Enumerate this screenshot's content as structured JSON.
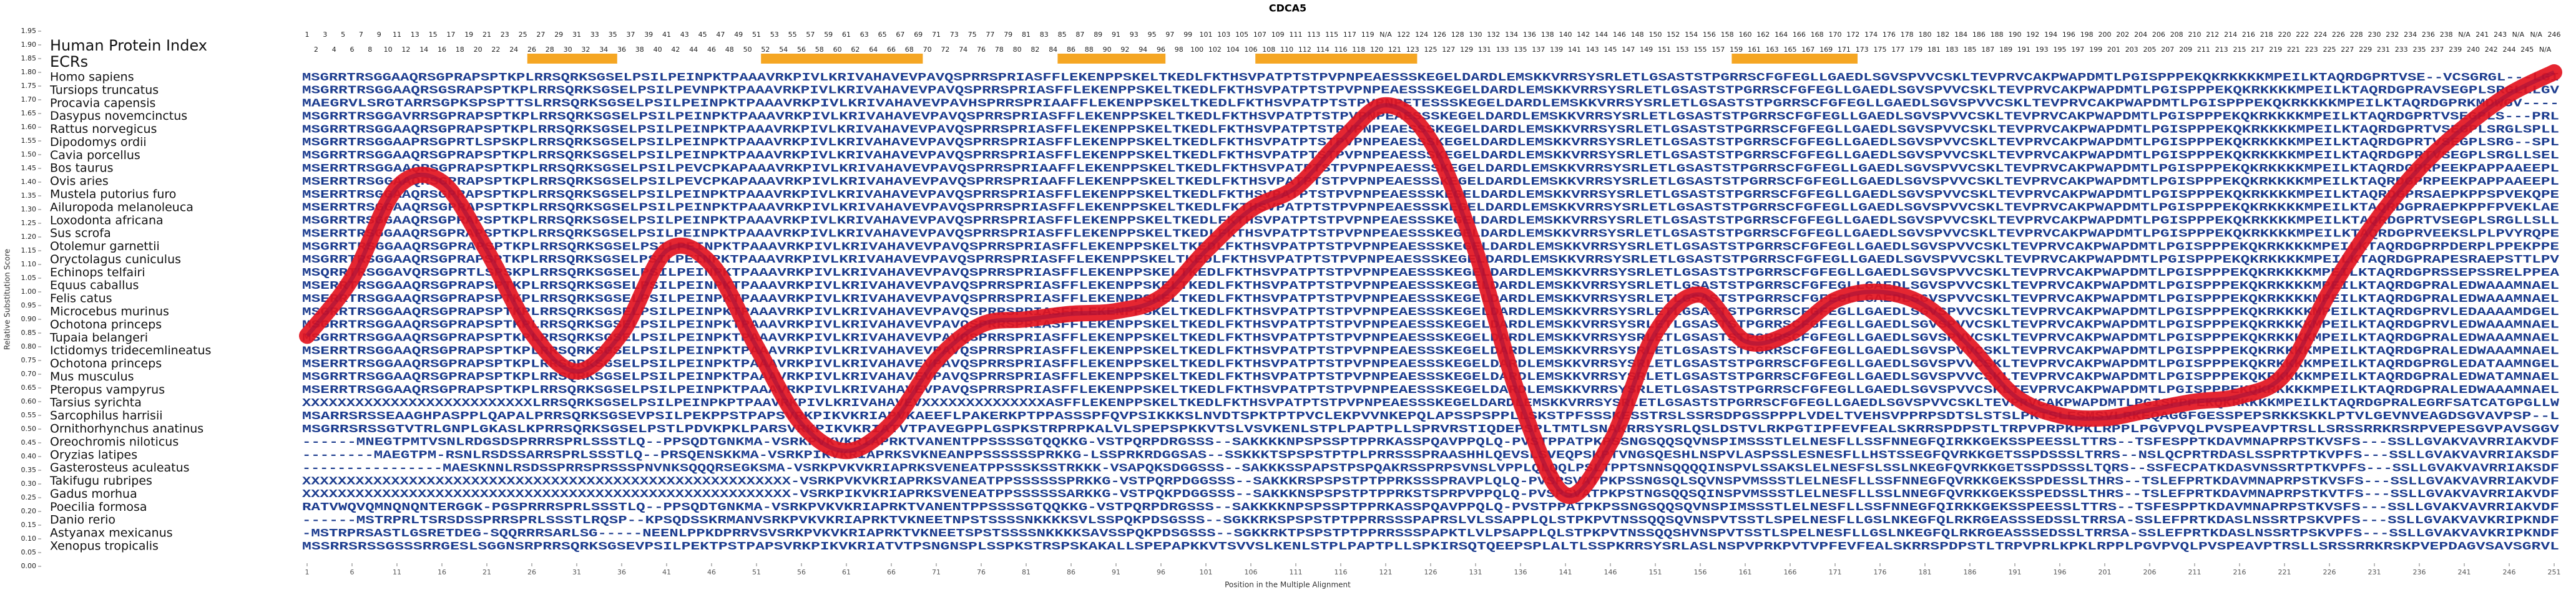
{
  "chart_data": {
    "type": "line",
    "title": "CDCA5",
    "ylabel": "Relative Substitution Score",
    "xlabel": "Position in the Multiple Alignment",
    "index_label": "Human Protein Index",
    "ecr_label": "ECRs",
    "ecr_color": "#f5a623",
    "color": "#e3141f",
    "xlim": [
      1,
      251
    ],
    "ylim": [
      0,
      1.95
    ],
    "xticks": [
      1,
      6,
      11,
      16,
      21,
      26,
      31,
      36,
      41,
      46,
      51,
      56,
      61,
      66,
      71,
      76,
      81,
      86,
      91,
      96,
      101,
      106,
      111,
      116,
      121,
      126,
      131,
      136,
      141,
      146,
      151,
      156,
      161,
      166,
      171,
      176,
      181,
      186,
      191,
      196,
      201,
      206,
      211,
      216,
      221,
      226,
      231,
      236,
      241,
      246,
      251
    ],
    "yticks": [
      {
        "value": 0,
        "label": "0.00"
      },
      {
        "value": 0.05,
        "label": "0.05"
      },
      {
        "value": 0.1,
        "label": "0.10"
      },
      {
        "value": 0.15,
        "label": "0.15"
      },
      {
        "value": 0.2,
        "label": "0.20"
      },
      {
        "value": 0.25,
        "label": "0.25"
      },
      {
        "value": 0.3,
        "label": "0.30"
      },
      {
        "value": 0.35,
        "label": "0.35"
      },
      {
        "value": 0.4,
        "label": "0.40"
      },
      {
        "value": 0.45,
        "label": "0.45"
      },
      {
        "value": 0.5,
        "label": "0.50"
      },
      {
        "value": 0.55,
        "label": "0.55"
      },
      {
        "value": 0.6,
        "label": "0.60"
      },
      {
        "value": 0.65,
        "label": "0.65"
      },
      {
        "value": 0.7,
        "label": "0.70"
      },
      {
        "value": 0.75,
        "label": "0.75"
      },
      {
        "value": 0.8,
        "label": "0.80"
      },
      {
        "value": 0.85,
        "label": "0.85"
      },
      {
        "value": 0.9,
        "label": "0.90"
      },
      {
        "value": 0.95,
        "label": "0.95"
      },
      {
        "value": 1,
        "label": "1.00"
      },
      {
        "value": 1.05,
        "label": "1.05"
      },
      {
        "value": 1.1,
        "label": "1.10"
      },
      {
        "value": 1.15,
        "label": "1.15"
      },
      {
        "value": 1.2,
        "label": "1.20"
      },
      {
        "value": 1.25,
        "label": "1.25"
      },
      {
        "value": 1.3,
        "label": "1.30"
      },
      {
        "value": 1.35,
        "label": "1.35"
      },
      {
        "value": 1.4,
        "label": "1.40"
      },
      {
        "value": 1.45,
        "label": "1.45"
      },
      {
        "value": 1.5,
        "label": "1.50"
      },
      {
        "value": 1.55,
        "label": "1.55"
      },
      {
        "value": 1.6,
        "label": "1.60"
      },
      {
        "value": 1.65,
        "label": "1.65"
      },
      {
        "value": 1.7,
        "label": "1.70"
      },
      {
        "value": 1.75,
        "label": "1.75"
      },
      {
        "value": 1.8,
        "label": "1.80"
      },
      {
        "value": 1.85,
        "label": "1.85"
      },
      {
        "value": 1.9,
        "label": "1.90"
      },
      {
        "value": 1.95,
        "label": "1.95"
      }
    ],
    "x": [
      1,
      6,
      11,
      16,
      21,
      26,
      31,
      36,
      41,
      46,
      51,
      56,
      61,
      66,
      71,
      76,
      81,
      86,
      91,
      96,
      101,
      106,
      111,
      116,
      121,
      126,
      131,
      136,
      141,
      146,
      151,
      156,
      161,
      166,
      171,
      176,
      181,
      186,
      191,
      196,
      201,
      206,
      211,
      216,
      221,
      226,
      231,
      236,
      241,
      246,
      251
    ],
    "values": [
      0.84,
      1.05,
      1.38,
      1.4,
      1.15,
      0.85,
      0.71,
      0.85,
      1.15,
      1.1,
      0.8,
      0.52,
      0.42,
      0.52,
      0.75,
      0.88,
      0.9,
      0.92,
      0.93,
      0.98,
      1.15,
      1.3,
      1.38,
      1.55,
      1.68,
      1.55,
      1.15,
      0.6,
      0.26,
      0.45,
      0.85,
      0.99,
      0.82,
      0.85,
      0.97,
      1.0,
      0.95,
      0.8,
      0.62,
      0.55,
      0.54,
      0.57,
      0.6,
      0.62,
      0.7,
      1.0,
      1.25,
      1.45,
      1.6,
      1.72,
      1.8
    ],
    "ecrs": [
      [
        26,
        35
      ],
      [
        52,
        69
      ],
      [
        85,
        96
      ],
      [
        107,
        124
      ],
      [
        160,
        173
      ]
    ],
    "human_index": [
      1,
      2,
      3,
      4,
      5,
      6,
      7,
      8,
      9,
      10,
      11,
      12,
      13,
      14,
      15,
      16,
      17,
      18,
      19,
      20,
      21,
      22,
      23,
      24,
      25,
      26,
      27,
      28,
      29,
      30,
      31,
      32,
      33,
      34,
      35,
      36,
      37,
      38,
      39,
      40,
      41,
      42,
      43,
      44,
      45,
      46,
      47,
      48,
      49,
      50,
      51,
      52,
      53,
      54,
      55,
      56,
      57,
      58,
      59,
      60,
      61,
      62,
      63,
      64,
      65,
      66,
      67,
      68,
      69,
      70,
      71,
      72,
      73,
      74,
      75,
      76,
      77,
      78,
      79,
      80,
      81,
      82,
      83,
      84,
      85,
      86,
      87,
      88,
      89,
      90,
      91,
      92,
      93,
      94,
      95,
      96,
      97,
      98,
      99,
      100,
      101,
      102,
      103,
      104,
      105,
      106,
      107,
      108,
      109,
      110,
      111,
      112,
      113,
      114,
      115,
      116,
      117,
      118,
      119,
      120,
      "N/A",
      121,
      122,
      123,
      124,
      125,
      126,
      127,
      128,
      129,
      130,
      131,
      132,
      133,
      134,
      135,
      136,
      137,
      138,
      139,
      140,
      141,
      142,
      143,
      144,
      145,
      146,
      147,
      148,
      149,
      150,
      151,
      152,
      153,
      154,
      155,
      156,
      157,
      158,
      159,
      160,
      161,
      162,
      163,
      164,
      165,
      166,
      167,
      168,
      169,
      170,
      171,
      172,
      173,
      174,
      175,
      176,
      177,
      178,
      179,
      180,
      181,
      182,
      183,
      184,
      185,
      186,
      187,
      188,
      189,
      190,
      191,
      192,
      193,
      194,
      195,
      196,
      197,
      198,
      199,
      200,
      201,
      202,
      203,
      204,
      205,
      206,
      207,
      208,
      209,
      210,
      211,
      212,
      213,
      214,
      215,
      216,
      217,
      218,
      219,
      220,
      221,
      222,
      223,
      224,
      225,
      226,
      227,
      228,
      229,
      230,
      231,
      232,
      233,
      234,
      235,
      236,
      237,
      238,
      239,
      "N/A",
      240,
      241,
      242,
      243,
      244,
      "N/A",
      245,
      "N/A",
      "N/A",
      246
    ],
    "rows": [
      {
        "species": "Homo sapiens",
        "sequence": "MSGRRTRSGGAAQRSGPRAPSPTKPLRRSQRKSGSELPSILPEINPKTPAAAVRKPIVLKRIVAHAVEVPAVQSPRRSPRIASFFLEKENPPSKELTKEDLFKTHSVPATPTSTPVPNPEAESSSKEGELDARDLEMSKKVRRSYSRLETLGSASTSTPGRRSCFGFEGLLGAEDLSGVSPVVCSKLTEVPRVCAKPWAPDMTLPGISPPPEKQKRKKKKMPEILKTAQRDGPRTVSE--VCSGRGL---LGI"
      },
      {
        "species": "Tursiops truncatus",
        "sequence": "MSGRRTRSGGAAQRSGSRAPSPTKPLRRSQRKSGSELPSILPEVNPKTPAAAVRKPIVLKRIVAHAVEVPAVQSPRRSPRIASFFLEKENPPSKELTKEDLFKTHSVPATPTSTPVPNPEAESSSKEGELDARDLEMSKKVRRSYSRLETLGSASTSTPGRRSCFGFEGLLGAEDLSGVSPVVCSKLTEVPRVCAKPWAPDMTLPGISPPPEKQKRKKKKMPEILKTAQRDGPRAVSEGPLSRGLLLGV"
      },
      {
        "species": "Procavia capensis",
        "sequence": "MAEGRVLSRGTARRSGPKSPSPTTSLRRSQRKSGSELPSILPEINPKTPAAAVRKPIVLKRIVAHAVEVPAVHSPRRSPRIAAFFLEKENPPSKELTKEDLFKTHSVPATPTSTPVPNPETESSSKEGELDARDLEMSKKVRRSYSRLETLGSASTSTPGRRSCFGFEGLLGAEDLSGVSPVVCSKLTEVPRVCAKPWAPDMTLPGISPPPEKQKRKKKKMPEILKTAQRDGPRKMDWGV----"
      },
      {
        "species": "Dasypus novemcinctus",
        "sequence": "MSGRRTRSGGAVRRSGPRAPSPTKPLRRSQRKSGSELPSILPEINPKTPAAAVRKPIVLKRIVAHAVEVPAVQSPRRSPRIASFFLEKENPPSKELTKEDLFKTHSVPATPTSTPVPNPEAESSSKEGELDARDLEMSKKVRRSYSRLETLGSASTSTPGRRSCFGFEGLLGAEDLSGVSPVVCSKLTEVPRVCAKPWAPDMTLPGISPPPEKQKRKKKKMPEILKTAQRDGPRTVSEGPLS---PRL"
      },
      {
        "species": "Rattus norvegicus",
        "sequence": "MSGRRTRSGGAAQRSGPRAPSPTKPLRRSQRKSGSELPSILPEINPKTPAAAVRKPIVLKRIVAHAVEVPAVQSPRRSPRIASFFLEKENPPSKELTKEDLFKTHSVPATPTSTPVPNPEAESSSKEGELDARDLEMSKKVRRSYSRLETLGSASTSTPGRRSCFGFEGLLGAEDLSGVSPVVCSKLTEVPRVCAKPWAPDMTLPGISPPPEKQKRKKKKMPEILKTAQRDGPRTVSEGPLSRGLSPLL"
      },
      {
        "species": "Dipodomys ordii",
        "sequence": "MSGRRTRSGGAAPRSGPRTLSPSKPLRRSQRKSGSELPSILPEINPKTPAAAVRKPIVLKRIVAHAVEVPAVQSPRRSPRIASFFLEKENPPSKELTKEDLFKTHSVPATPTSTPVPNPEAESSSKEGELDARDLEMSKKVRRSYSRLETLGSASTSTPGRRSCFGFEGLLGAEDLSGVSPVVCSKLTEVPRVCAKPWAPDMTLPGISPPPEKQKRKKKKMPEILKTAQRDGPRTVSEGPLSRG--SPL"
      },
      {
        "species": "Cavia porcellus",
        "sequence": "MSGRRTRSGGAAQRSGPRAPSPTKPLRRSQRKSGSELPSILPEINPKTPAAAVRKPIVLKRIVAHAVEVPAVQSPRRSPRIASFFLEKENPPSKELTKEDLFKTHSVPATPTSTPVPNPEAESSSKEGELDARDLEMSKKVRRSYSRLETLGSASTSTPGRRSCFGFEGLLGAEDLSGVSPVVCSKLTEVPRVCAKPWAPDMTLPGISPPPEKQKRKKKKMPEILKTAQRDGPRTVSEGPLSRGLLSEL"
      },
      {
        "species": "Bos taurus",
        "sequence": "MSERRTRSGGAAQRSGPRAPSPTKPLRRSQRKSGSELPSILPEVCPKAPAAAVRKPIVLKRIVAHAVEVPAVQSPRRSPRIAAFFLEKENPPSKELTKEDLFKTHSVPATPTSTPVPNPEAESSSKEGELDARDLEMSKKVRRSYSRLETLGSASTSTPGRRSCFGFEGLLGAEDLSGVSPVVCSKLTEVPRVCAKPWAPDMTLPGISPPPEKQKRKKKKMPEILKTAQRDGPRPEEKPAPPAAEEPL"
      },
      {
        "species": "Ovis aries",
        "sequence": "MSERRTRSGGAAQRSGPRAPSPTKPLRRSQRKSGSELPSILPEVCPKAPAAAVRKPIVLKRIVAHAVEVPAVQSPRRSPRIAAFFLEKENPPSKELTKEDLFKTHSVPATPTSTPVPNPEAESSSKEGELDARDLEMSKKVRRSYSRLETLGSASTSTPGRRSCFGFEGLLGAEDLSGVSPVVCSKLTEVPRVCAKPWAPDMTLPGISPPPEKQKRKKKKMPEILKTAQRDGPRPEEKPAPPAAEEPL"
      },
      {
        "species": "Mustela putorius furo",
        "sequence": "MSERRTRSGGAAQRSGPRAPSPTKPLRRSQRKSGSELPSILPEINPKTPAAAVRKPIVLKRIVAHAVEVPAVQSPRRSPRIASFFLEKENPPSKELTKEDLFKTHSVPATPTSTPVPNPEAESSSKEGELDARDLEMSKKVRRSYSRLETLGSASTSTPGRRSCFGFEGLLGAEDLSGVSPVVCSKLTEVPRVCAKPWAPDMTLPGISPPPEKQKRKKKKMPEILKTAQRDGPRSAEPKPPSPVEKQPE"
      },
      {
        "species": "Ailuropoda melanoleuca",
        "sequence": "MSERRTRSGGAAQRSGPRAPSPTKPLRRSQRKSGSELPSILPEINPKTPAAAVRKPIVLKRIVAHAVEVPAVQSPRRSPRIASFFLEKENPPSKELTKEDLFKTHSVPATPTSTPVPNPEAESSSKEGELDARDLEMSKKVRRSYSRLETLGSASTSTPGRRSCFGFEGLLGAEDLSGVSPVVCSKLTEVPRVCAKPWAPDMTLPGISPPPEKQKRKKKKMPEILKTAQRDGPRAEPKPPFPVEKLAE"
      },
      {
        "species": "Loxodonta africana",
        "sequence": "MSGRRTRSGGAAQRSGPRAPSPTKPLRRSQRKSGSELPSILPEINPKTPAAAVRKPIVLKRIVAHAVEVPAVQSPRRSPRIASFFLEKENPPSKELTKEDLFKTHSVPATPTSTPVPNPEAESSSKEGELDARDLEMSKKVRRSYSRLETLGSASTSTPGRRSCFGFEGLLGAEDLSGVSPVVCSKLTEVPRVCAKPWAPDMTLPGISPPPEKQKRKKKKMPEILKTAQRDGPRTVSEGPLSRGLLSLL"
      },
      {
        "species": "Sus scrofa",
        "sequence": "MSERRTRSGGAAQRSGPRAPSPTKPLRRSQRKSGSELPSILPEINPKTPAAAVRKPIVLKRIVAHAVEVPAVQSPRRSPRIASFFLEKENPPSKELTKEDLFKTHSVPATPTSTPVPNPEAESSSKEGELDARDLEMSKKVRRSYSRLETLGSASTSTPGRRSCFGFEGLLGAEDLSGVSPVVCSKLTEVPRVCAKPWAPDMTLPGISPPPEKQKRKKKKMPEILKTAQRDGPRVEEKSLPLPVYRQPE"
      },
      {
        "species": "Otolemur garnettii",
        "sequence": "MSGRRTRSGGAAQRSGPRAPSPTKPLRRSQRKSGSELPSILPEINPKTPAAAVRKPIVLKRIVAHAVEVPAVQSPRRSPRIASFFLEKENPPSKELTKEDLFKTHSVPATPTSTPVPNPEAESSSKEGELDARDLEMSKKVRRSYSRLETLGSASTSTPGRRSCFGFEGLLGAEDLSGVSPVVCSKLTEVPRVCAKPWAPDMTLPGISPPPEKQKRKKKKMPEILKTAQRDGPRPDERPLPPEKPPE"
      },
      {
        "species": "Oryctolagus cuniculus",
        "sequence": "MSGRRTRSGGAAQRSGPRAPSPTKPLRRSQRKSGSELPSILPEINPKTPAAAVRKPIVLKRIVAHAVEVPAVQSPRRSPRIASFFLEKENPPSKELTKEDLFKTHSVPATPTSTPVPNPEAESSSKEGELDARDLEMSKKVRRSYSRLETLGSASTSTPGRRSCFGFEGLLGAEDLSGVSPVVCSKLTEVPRVCAKPWAPDMTLPGISPPPEKQKRKKKKMPEILKTAQRDGPRAPESRAEPSTTLPV"
      },
      {
        "species": "Echinops telfairi",
        "sequence": "MSQRRTRSGGAVQRSGPRTLSPSKPLRRSQRKSGSELPSILPEINPKTPAAAVRKPIVLKRIVAHAVEVPAVQSPRRSPRIASFFLEKENPPSKELTKEDLFKTHSVPATPTSTPVPNPEAESSSKEGELDARDLEMSKKVRRSYSRLETLGSASTSTPGRRSCFGFEGLLGAEDLSGVSPVVCSKLTEVPRVCAKPWAPDMTLPGISPPPEKQKRKKKKMPEILKTAQRDGPRSSEPSSRELPPEA"
      },
      {
        "species": "Equus caballus",
        "sequence": "MSERRTRSGGAAQRSGPRAPSPTKPLRRSQRKSGSELPSILPEINPKTPAAAVRKPIVLKRIVAHAVEVPAVQSPRRSPRIASFFLEKENPPSKELTKEDLFKTHSVPATPTSTPVPNPEAESSSKEGELDARDLEMSKKVRRSYSRLETLGSASTSTPGRRSCFGFEGLLGAEDLSGVSPVVCSKLTEVPRVCAKPWAPDMTLPGISPPPEKQKRKKKKMPEILKTAQRDGPRALEDWAAAMNAEL"
      },
      {
        "species": "Felis catus",
        "sequence": "MSERRTRSGGAAQRSGPRAPSPTKPLRRSQRKSGSELPSILPEINPKTPAAAVRKPIVLKRIVAHAVEVPAVQSPRRSPRIASFFLEKENPPSKELTKEDLFKTHSVPATPTSTPVPNPEAESSSKEGELDARDLEMSKKVRRSYSRLETLGSASTSTPGRRSCFGFEGLLGAEDLSGVSPVVCSKLTEVPRVCAKPWAPDMTLPGISPPPEKQKRKKKKMPEILKTAQRDGPRALEDWAAAMNAEL"
      },
      {
        "species": "Microcebus murinus",
        "sequence": "MSGRRTRSGGAAQRSGPRAPSPTKPLRRSQRKSGSELPSILPEINPKTPAAAVRKPIVLKRIVAHAVEVPAVQSPRRSPRIASFFLEKENPPSKELTKEDLFKTHSVPATPTSTPVPNPEAESSSKEGELDARDLEMSKKVRRSYSRLETLGSASTSTPGRRSCFGFEGLLGAEDLSGVSPVVCSKLTEVPRVCAKPWAPDMTLPGISPPPEKQKRKKKKMPEILKTAQRDGPRVLEDAAAAMDGEL"
      },
      {
        "species": "Ochotona princeps",
        "sequence": "MSGRRTRSGGAAQRSGPRAPSPTKPLRRSQRKSGSELPSILPEINPKTPAAAVRKPIVLKRIVAHAVEVPAVQSPRRSPRIASFFLEKENPPSKELTKEDLFKTHSVPATPTSTPVPNPEAESSSKEGELDARDLEMSKKVRRSYSRLETLGSASTSTPGRRSCFGFEGLLGAEDLSGVSPVVCSKLTEVPRVCAKPWAPDMTLPGISPPPEKQKRKKKKMPEILKTAQRDGPRVLEDWAAAMNAEL"
      },
      {
        "species": "Tupaia belangeri",
        "sequence": "MSGRRTRSGGAAQRSGPRAPSPTKPLRRSQRKSGSELPSILPEINPKTPAAAVRKPIVLKRIVAHAVEVPAVQSPRRSPRIASFFLEKENPPSKELTKEDLFKTHSVPATPTSTPVPNPEAESSSKEGELDARDLEMSKKVRRSYSRLETLGSASTSTPGRRSCFGFEGLLGAEDLSGVSPVVCSKLTEVPRVCAKPWAPDMTLPGISPPPEKQKRKKKKMPEILKTAQRDGPRALEDWAAAMNAEL"
      },
      {
        "species": "Ictidomys tridecemlineatus",
        "sequence": "MSERRTRSGGAAQRSGPRAPSPTKPLRRSQRKSGSELPSILPEINPKTPAAAVRKPIVLKRIVAHAVEVPAVQSPRRSPRIASFFLEKENPPSKELTKEDLFKTHSVPATPTSTPVPNPEAESSSKEGELDARDLEMSKKVRRSYSRLETLGSASTSTPGRRSCFGFEGLLGAEDLSGVSPVVCSKLTEVPRVCAKPWAPDMTLPGISPPPEKQKRKKKKMPEILKTAQRDGPRALEDWAAAMNAEL"
      },
      {
        "species": "Ochotona princeps",
        "sequence": "MSERRTRSGGAAQRSGPRAPSPTKPLRRSQRKSGSELPSILPEINPKTPAAAVRKPIVLKRIVAHAVEVPAVQSPRRSPRIASFFLEKENPPSKELTKEDLFKTHSVPATPTSTPVPNPEAESSSKEGELDARDLEMSKKVRRSYSRLETLGSASTSTPGRRSCFGFEGLLGAEDLSGVSPVVCSKLTEVPRVCAKPWAPDMTLPGISPPPEKQKRKKKKMPEILKTAQRDGPRGLEDATAAMNGEL"
      },
      {
        "species": "Mus musculus",
        "sequence": "MSGRRTRSGGAAQRSGPRAPSPTKPLRRSQRKSGSELPSILPEINPKTPAAAVRKPIVLKRIVAHAVEVPAVQSPRRSPRIASFFLEKENPPSKELTKEDLFKTHSVPATPTSTPVPNPEAESSSKEGELDARDLEMSKKVRRSYSRLETLGSASTSTPGRRSCFGFEGLLGAEDLSGVSPVVCSKLTEVPRVCAKPWAPDMTLPGISPPPEKQKRKKKKMPEILKTAQRDGPRALEDWATAMNAEL"
      },
      {
        "species": "Pteropus vampyrus",
        "sequence": "MSERRTRSGGAAQRSGPRAPSPTKPLRRSQRKSGSELPSILPEINPKTPAAAVRKPIVLKRIVAHAVEVPAVQSPRRSPRIASFFLEKENPPSKELTKEDLFKTHSVPATPTSTPVPNPEAESSSKEGELDARDLEMSKKVRRSYSRLETLGSASTSTPGRRSCFGFEGLLGAEDLSGVSPVVCSKLTEVPRVCAKPWAPDMTLPGISPPPEKQKRKKKKMPEILKTAQRDGPRALEDWAAAMNAEL"
      },
      {
        "species": "Tarsius syrichta",
        "sequence": "XXXXXXXXXXXXXXXXXXXXXXXXXXLRRSQRKSGSELPSILPEINPKPTPAAVRKPIVLKRIVAHAVEVXXXXXXXXXXXXXXASFFLEKENPPSKELTKEDLFKTHSVPATPTSTPVPNPEAESSSKEGELDARDLEMSKKVRRSYSRLETLGSASTSTPGRRSCFGFEGLLGAEDLSGVSPVVCSKLTEVPRVCAKPWAPDMTLPGISPPPEKQKRKKKKMPEILKTAQRDGPRALEGRFSATCATGPGLLW"
      },
      {
        "species": "Sarcophilus harrisii",
        "sequence": "MSARRSRSSEAAGHPASPPLQAPALPRRSQRKSGSEVPSILPEKPPSTPAPSVRKPIKVKRIAPVKAEEFLPAKERKPTPPASSSPFQVPSIKKKSLNVDTSPKTPTPVCLEKPVVNKEPQLAPSSPSPPLLSKSTPFSSSKESSTRSLSSRSDPGSSPPPLVDELTVEHSVPPRPSDTSLSTSLPKTSLESMSVLRKEQAGGFGESSPEPSRKKSKKLPTVLGEVNVEAGDSGVAVPSP--L"
      },
      {
        "species": "Ornithorhynchus anatinus",
        "sequence": "MSGRRSRSSGTVTRLGNPLGKASLKPRRSQRKSGSELPSTLPDVKPKLPARSVRKPIKVKRIATVTPAVEGPPLGSPKSTRPRPKALVLSPEPSPKKVTSLVSVKENLSTPLPAPTPLLSPRVRSTIQDEPSPLTMTLSNAKRRSYSRLQSLDSTVLRKPGTIPFEVFEALSKRRSPDPSTLTRPVPRPKPKLRPPLPGVPVQLPVSPEAVPTRSLLSRSSRRKRSRPVEPESGVPAVSGGV"
      },
      {
        "species": "Oreochromis niloticus",
        "sequence": "------MNEGTPMTVSNLRDGSDSPRRRSPRLSSSTLQ--PPSQDTGNKMA-VSRKPVKVKRIAPRKTVANENTPPSSSSGTQQKKG-VSTPQRPDRGSSS--SAKKKKNPSPSSPTPPRKASSPQAVPPQLQ-PVSTPPATPKPSSNGSQQSQVNSPIMSSSTLELNESFLLSSFNNEGFQIRKKGEKSSPEESSLTTRS--TSFESPPTKDAVMNAPRPSTKVSFS---SSLLGVAKVAVRRIAKVDF"
      },
      {
        "species": "Oryzias latipes",
        "sequence": "--------MAEGTPM-RSNLRSDSSARRSPRLSSSTLQ--PRSQENSKKMA-VSRKPIKVKRIAPRKSVKNEANPPSSSSSSPRKKG-LSSPRKRDGGSAS--SSKKKTSPSPSTPTPLPRRSSSPRAASHHLQEVSLSVEQPSKPTVNGSQESHLNSPVLASPSSLESNESFLLHSTSSEGFQVRKKGETSSPDSSSLTRRS--NSLQCPRTRDASLSSPRTPTKVPFS---SSLLGVAKVAVRRIAKSDF"
      },
      {
        "species": "Gasterosteus aculeatus",
        "sequence": "----------------MAESKNNLRSDSSPRRSPRSSSPNVNKSQQQRSEGKSMA-VSRKPVKVKRIAPRKSVENEATPPSSSKSSTRKKK-VSAPQKSDGGSSS--SAKKKSSPAPSTPSPQAKRSSPRPSVNSLVPPLQLQQLPSLTPPTSNNSQQQQINSPVLSSAKSLELNESFSLSSLNKEGFQVRKKGETSSPDSSSLTQRS--SSFECPATKDASVNSSRTPTKVPFS---SSLLGVAKVAVRRIAKSDF"
      },
      {
        "species": "Takifugu rubripes",
        "sequence": "XXXXXXXXXXXXXXXXXXXXXXXXXXXXXXXXXXXXXXXXXXXXXXXXXXXXXXX-VSRKPVKVKRIAPRKSVANEATPPSSSSSSPRKKG-VSTPQRPDGGSSS--SAKKKRSPSPSTPTPPRKSSSPRAVPLQLQ-PVSPSVATPKPSSNGSQLSQVNSPVMSSSTLELNESFLLSSFNNEGFQVRKKGEKSSPDESSLTHRS--TSLEFPRTKDAVMNAPRPSTKVSFS---SSLLGVAKVAVRRIAKVDF"
      },
      {
        "species": "Gadus morhua",
        "sequence": "XXXXXXXXXXXXXXXXXXXXXXXXXXXXXXXXXXXXXXXXXXXXXXXXXXXXXXX-VSRKPIKVKRIAPRKSVENEATPPSSSSSSARKKG-VSTPQKPDGGSSS--SAKKKNSPSPSTPTPPRKSTSPRPVPPQLQ-PVSPSVATPKPSTNGSQQSQINSPVMSSSTLELNESFLLSSLNNEGFQVRKKGEKSSPEDSSLTHRS--TSLEFPRTKDAVMNAPRPSTKVTFS---SSLLGVAKVAVRRIAKVDF"
      },
      {
        "species": "Poecilia formosa",
        "sequence": "RATVWQVQMNQNQNTERGGK-PGSPRRRSPRLSSSTLQ--PPSQDTGNKMA-VSRKPVKVKRIAPRKTVANENTPPSSSSGTQQKKG-VSTPQRPDRGSSS--SAKKKKNPSPSSPTPPRKASSPQAVPPQLQ-PVSTPPATPKPSSNGSQQSQVNSPIMSSSTLELNESFLLSSFNNEGFQIRKKGEKSSPEESSLTTRS--TSFESPPTKDAVMNAPRPSTKVSFS---SSLLGVAKVAVRRIAKVDF"
      },
      {
        "species": "Danio rerio",
        "sequence": "------MSTRPRLTSRSDSSPRRSPRLSSSTLRQSP--KPSQDSSKRMANVSRKPVKVKRIAPRKTVKNEETNPSTSSSSNKKKKSVLSSPQKPDSGSSS--SGKKRKSPSPSTPTPPRRSSSPAPRSLVLSSAPPLQLSTPKPVTNSSQQSQVNSPVTSSTLSPELNESFLLGSLNKEGFQLRKRGEASSSEDSSLTRRSA-SSLEFPRTKDASLNSSRTPSKVPFS---SSLLGVAKVAVKRIPKNDF"
      },
      {
        "species": "Astyanax mexicanus",
        "sequence": "-MSTRPRSASTLGSRETDEG-SQQRRRSARLSG-----NEENLPPKDPRRVSVSRKPVKVKRIAPRKTVKNEETSPSTSSSSNKKKKSAVSSPQKPDSGSSS--SGKKRKTPSPSTPTPPRRSSSPAPKTLVLPSAPPLQLSTPKPVTNSSQQSHVNSPVTSSTLSPELNESFLLGSLNKEGFQLRKRGEASSSEDSSLTRRSA-SSLEFPRTKDASLNSSRTPSKVPFS---SSLLGVAKVAVKRIPKNDF"
      },
      {
        "species": "Xenopus tropicalis",
        "sequence": "MSSRRSRSSGSSSRRGESLSGGNSRPRRSQRKSGSEVPSILPEKTPSTPAPSVRKPIKVKRIATVTPSNGNSPLSSPKSTRSPSKAKALLSPEPAPKKVTSVVSLKENLSTPLPAPTPLLSPKIRSQTQEEPSPLALTLSSPKRRSYSRLASLNSPVPRKPVTVPFEVFEALSKRRSPDPSTLTRPVPRLKPKLRPPLPGVPVQLPVSPEAVPTRSLLSRSSRRKRSKPVEPDAGVSAVSGRVL"
      }
    ]
  }
}
